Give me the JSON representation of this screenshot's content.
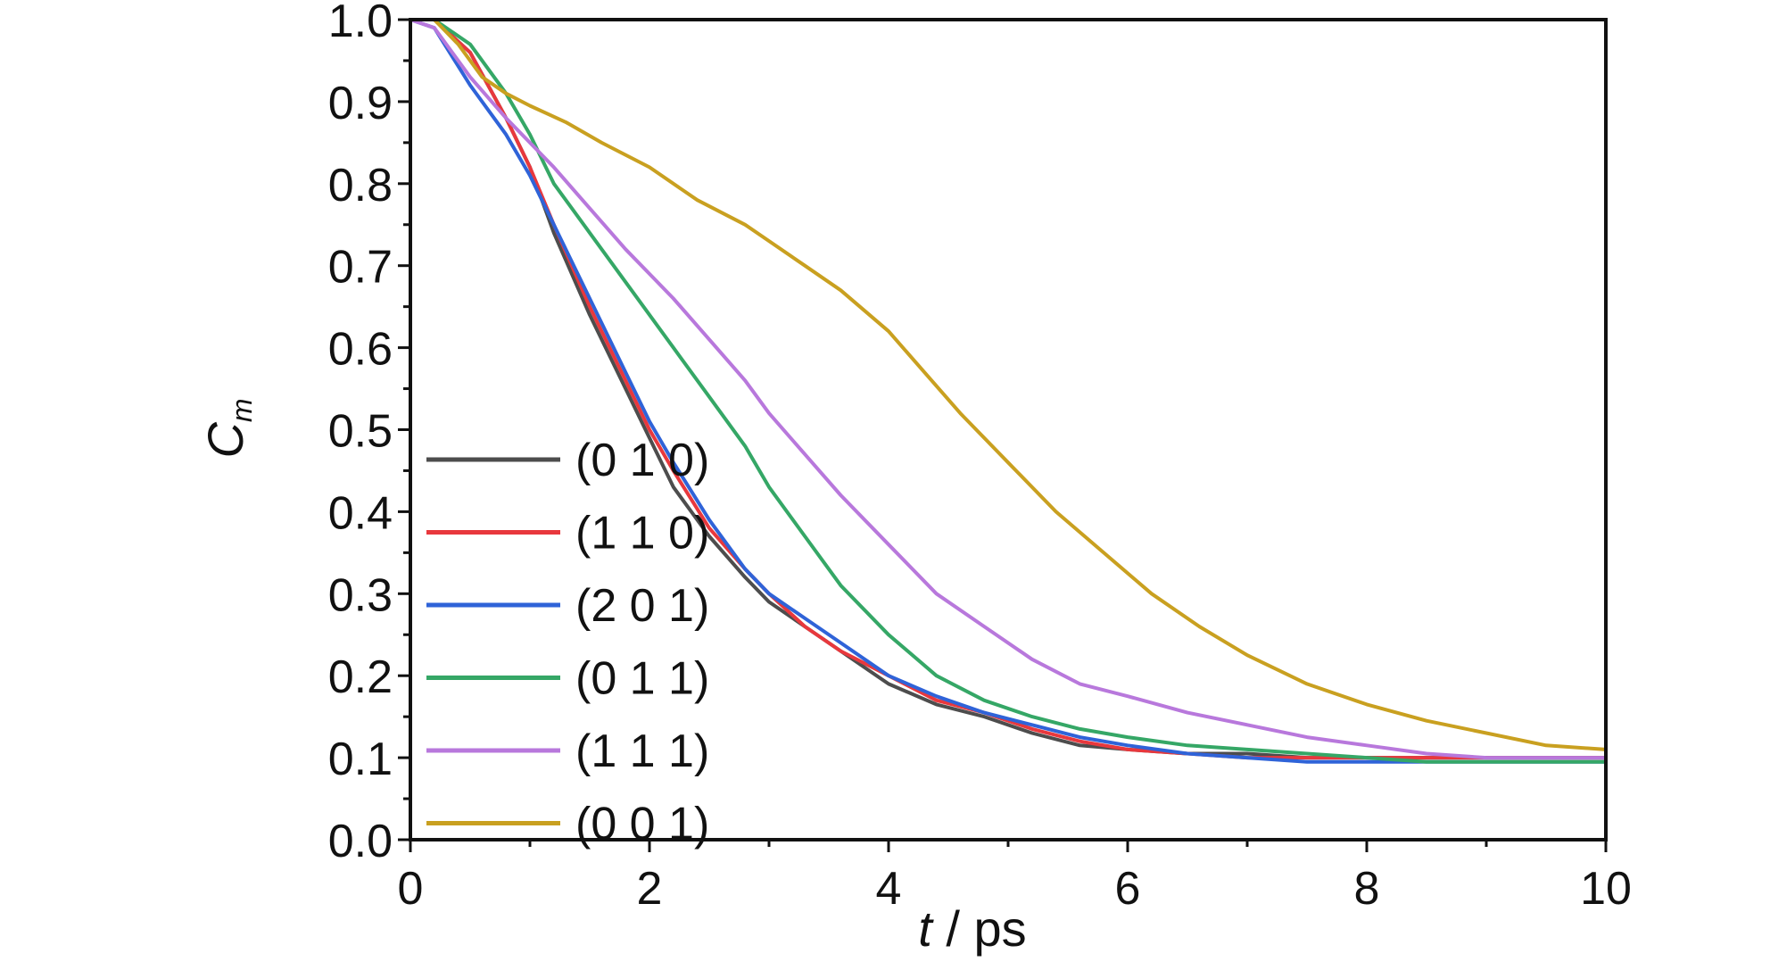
{
  "chart_data": {
    "type": "line",
    "ylabel_main": "C",
    "ylabel_sub": "m",
    "xlabel_italic": "t",
    "xlabel_rest": " / ps",
    "xlim": [
      0,
      10
    ],
    "ylim": [
      0.0,
      1.0
    ],
    "xticks": [
      "0",
      "2",
      "4",
      "6",
      "8",
      "10"
    ],
    "yticks": [
      "0.0",
      "0.1",
      "0.2",
      "0.3",
      "0.4",
      "0.5",
      "0.6",
      "0.7",
      "0.8",
      "0.9",
      "1.0"
    ],
    "grid": false,
    "legend_position": "bottom-left",
    "series": [
      {
        "name": "(0 1 0)",
        "color": "#4d4d4d",
        "x": [
          0,
          0.2,
          0.5,
          0.8,
          1.0,
          1.2,
          1.5,
          1.8,
          2.0,
          2.2,
          2.5,
          2.8,
          3.0,
          3.3,
          3.6,
          4.0,
          4.4,
          4.8,
          5.2,
          5.6,
          6.0,
          6.5,
          7.0,
          7.5,
          8.0,
          8.5,
          9.0,
          9.5,
          10.0
        ],
        "y": [
          1.0,
          1.0,
          0.96,
          0.88,
          0.82,
          0.74,
          0.64,
          0.55,
          0.49,
          0.43,
          0.37,
          0.32,
          0.29,
          0.26,
          0.23,
          0.19,
          0.165,
          0.15,
          0.13,
          0.115,
          0.11,
          0.105,
          0.105,
          0.1,
          0.1,
          0.1,
          0.1,
          0.1,
          0.1
        ]
      },
      {
        "name": "(1 1 0)",
        "color": "#e8383d",
        "x": [
          0,
          0.2,
          0.5,
          0.8,
          1.0,
          1.2,
          1.5,
          1.8,
          2.0,
          2.2,
          2.5,
          2.8,
          3.0,
          3.3,
          3.6,
          4.0,
          4.4,
          4.8,
          5.2,
          5.6,
          6.0,
          6.5,
          7.0,
          7.5,
          8.0,
          8.5,
          9.0,
          9.5,
          10.0
        ],
        "y": [
          1.0,
          1.0,
          0.96,
          0.88,
          0.82,
          0.75,
          0.65,
          0.56,
          0.5,
          0.45,
          0.38,
          0.33,
          0.3,
          0.26,
          0.23,
          0.2,
          0.17,
          0.155,
          0.135,
          0.12,
          0.11,
          0.105,
          0.1,
          0.1,
          0.1,
          0.1,
          0.1,
          0.1,
          0.1
        ]
      },
      {
        "name": "(2 0 1)",
        "color": "#2f63d8",
        "x": [
          0,
          0.2,
          0.5,
          0.8,
          1.0,
          1.2,
          1.5,
          1.8,
          2.0,
          2.2,
          2.5,
          2.8,
          3.0,
          3.3,
          3.6,
          4.0,
          4.4,
          4.8,
          5.2,
          5.6,
          6.0,
          6.5,
          7.0,
          7.5,
          8.0,
          8.5,
          9.0,
          9.5,
          10.0
        ],
        "y": [
          1.0,
          0.99,
          0.92,
          0.86,
          0.81,
          0.75,
          0.66,
          0.57,
          0.51,
          0.46,
          0.39,
          0.33,
          0.3,
          0.27,
          0.24,
          0.2,
          0.175,
          0.155,
          0.14,
          0.125,
          0.115,
          0.105,
          0.1,
          0.095,
          0.095,
          0.095,
          0.095,
          0.095,
          0.095
        ]
      },
      {
        "name": "(0 1 1)",
        "color": "#35a766",
        "x": [
          0,
          0.2,
          0.5,
          0.8,
          1.0,
          1.2,
          1.5,
          1.8,
          2.0,
          2.2,
          2.5,
          2.8,
          3.0,
          3.3,
          3.6,
          4.0,
          4.4,
          4.8,
          5.2,
          5.6,
          6.0,
          6.5,
          7.0,
          7.5,
          8.0,
          8.5,
          9.0,
          9.5,
          10.0
        ],
        "y": [
          1.0,
          1.0,
          0.97,
          0.91,
          0.86,
          0.8,
          0.74,
          0.68,
          0.64,
          0.6,
          0.54,
          0.48,
          0.43,
          0.37,
          0.31,
          0.25,
          0.2,
          0.17,
          0.15,
          0.135,
          0.125,
          0.115,
          0.11,
          0.105,
          0.1,
          0.095,
          0.095,
          0.095,
          0.095
        ]
      },
      {
        "name": "(1 1 1)",
        "color": "#b878dc",
        "x": [
          0,
          0.2,
          0.5,
          0.8,
          1.0,
          1.2,
          1.5,
          1.8,
          2.0,
          2.2,
          2.5,
          2.8,
          3.0,
          3.3,
          3.6,
          4.0,
          4.4,
          4.8,
          5.2,
          5.6,
          6.0,
          6.5,
          7.0,
          7.5,
          8.0,
          8.5,
          9.0,
          9.5,
          10.0
        ],
        "y": [
          1.0,
          0.99,
          0.93,
          0.88,
          0.85,
          0.82,
          0.77,
          0.72,
          0.69,
          0.66,
          0.61,
          0.56,
          0.52,
          0.47,
          0.42,
          0.36,
          0.3,
          0.26,
          0.22,
          0.19,
          0.175,
          0.155,
          0.14,
          0.125,
          0.115,
          0.105,
          0.1,
          0.1,
          0.1
        ]
      },
      {
        "name": "(0 0 1)",
        "color": "#c9a020",
        "x": [
          0,
          0.2,
          0.4,
          0.6,
          0.8,
          1.0,
          1.3,
          1.6,
          2.0,
          2.4,
          2.8,
          3.0,
          3.3,
          3.6,
          4.0,
          4.3,
          4.6,
          5.0,
          5.4,
          5.8,
          6.2,
          6.6,
          7.0,
          7.5,
          8.0,
          8.5,
          9.0,
          9.5,
          10.0
        ],
        "y": [
          1.0,
          1.0,
          0.97,
          0.93,
          0.91,
          0.895,
          0.875,
          0.85,
          0.82,
          0.78,
          0.75,
          0.73,
          0.7,
          0.67,
          0.62,
          0.57,
          0.52,
          0.46,
          0.4,
          0.35,
          0.3,
          0.26,
          0.225,
          0.19,
          0.165,
          0.145,
          0.13,
          0.115,
          0.11
        ]
      }
    ]
  }
}
